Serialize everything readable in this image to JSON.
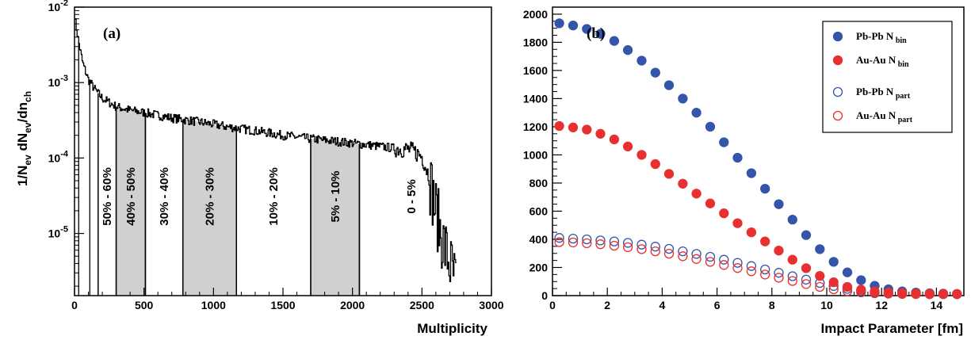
{
  "chart_data": [
    {
      "type": "histogram",
      "panel_label": "(a)",
      "xlabel": "Multiplicity",
      "ylabel": "1/N_ev dN_ev/dn_ch",
      "x_scale": "linear",
      "y_scale": "log",
      "xlim": [
        0,
        3000
      ],
      "ylim": [
        1.5e-06,
        0.01
      ],
      "x_ticks": [
        "0",
        "500",
        "1000",
        "1500",
        "2000",
        "2500",
        "3000"
      ],
      "y_ticks": [
        "10^-2",
        "10^-3",
        "10^-4",
        "10^-5"
      ],
      "distribution_envelope": {
        "x": [
          0,
          10,
          30,
          60,
          100,
          150,
          200,
          300,
          400,
          500,
          700,
          900,
          1100,
          1300,
          1500,
          1700,
          1900,
          2100,
          2300,
          2400,
          2450,
          2500,
          2550,
          2600,
          2650,
          2700,
          2750
        ],
        "y": [
          0.009,
          0.006,
          0.0035,
          0.0018,
          0.0011,
          0.0008,
          0.00062,
          0.00048,
          0.00043,
          0.0004,
          0.00034,
          0.0003,
          0.00026,
          0.00023,
          0.0002,
          0.00018,
          0.000165,
          0.00015,
          0.000135,
          0.00013,
          0.00012,
          0.000105,
          6e-05,
          2e-05,
          8e-06,
          4e-06,
          2e-06
        ]
      },
      "centrality_bands": [
        {
          "label": "50% - 60%",
          "x_min": 170,
          "x_max": 300,
          "shaded": false
        },
        {
          "label": "40% - 50%",
          "x_min": 300,
          "x_max": 510,
          "shaded": true
        },
        {
          "label": "30% - 40%",
          "x_min": 510,
          "x_max": 780,
          "shaded": false
        },
        {
          "label": "20% - 30%",
          "x_min": 780,
          "x_max": 1165,
          "shaded": true
        },
        {
          "label": "10% - 20%",
          "x_min": 1165,
          "x_max": 1700,
          "shaded": false
        },
        {
          "label": "5% - 10%",
          "x_min": 1700,
          "x_max": 2050,
          "shaded": true
        },
        {
          "label": "0 - 5%",
          "x_min": 2050,
          "x_max": 2800,
          "shaded": false
        }
      ]
    },
    {
      "type": "scatter",
      "panel_label": "(b)",
      "xlabel": "Impact Parameter [fm]",
      "xlim": [
        0,
        15
      ],
      "ylim": [
        0,
        2050
      ],
      "x_ticks": [
        "0",
        "2",
        "4",
        "6",
        "8",
        "10",
        "12",
        "14"
      ],
      "y_ticks": [
        "0",
        "200",
        "400",
        "600",
        "800",
        "1000",
        "1200",
        "1400",
        "1600",
        "1800",
        "2000"
      ],
      "legend_position": "top-right",
      "x": [
        0.25,
        0.75,
        1.25,
        1.75,
        2.25,
        2.75,
        3.25,
        3.75,
        4.25,
        4.75,
        5.25,
        5.75,
        6.25,
        6.75,
        7.25,
        7.75,
        8.25,
        8.75,
        9.25,
        9.75,
        10.25,
        10.75,
        11.25,
        11.75,
        12.25,
        12.75,
        13.25,
        13.75,
        14.25,
        14.75
      ],
      "series": [
        {
          "name": "Pb-Pb N",
          "name_sub": "bin",
          "color": "#3355aa",
          "filled": true,
          "values": [
            1935,
            1920,
            1895,
            1860,
            1810,
            1745,
            1670,
            1585,
            1495,
            1400,
            1300,
            1200,
            1090,
            980,
            870,
            760,
            650,
            540,
            430,
            330,
            240,
            165,
            110,
            70,
            45,
            30,
            22,
            17,
            14,
            12
          ]
        },
        {
          "name": "Au-Au N",
          "name_sub": "bin",
          "color": "#e83030",
          "filled": true,
          "values": [
            1205,
            1195,
            1180,
            1150,
            1110,
            1060,
            1000,
            935,
            865,
            795,
            725,
            655,
            585,
            515,
            450,
            385,
            320,
            255,
            195,
            140,
            95,
            62,
            42,
            30,
            23,
            18,
            15,
            13,
            12,
            11
          ]
        },
        {
          "name": "Pb-Pb N",
          "name_sub": "part",
          "color": "#3355aa",
          "filled": false,
          "values": [
            410,
            405,
            400,
            392,
            385,
            375,
            362,
            348,
            332,
            315,
            296,
            276,
            255,
            233,
            210,
            186,
            162,
            138,
            114,
            90,
            68,
            48,
            33,
            22,
            16,
            13,
            12,
            11,
            10,
            10
          ]
        },
        {
          "name": "Au-Au N",
          "name_sub": "part",
          "color": "#e83030",
          "filled": false,
          "values": [
            380,
            378,
            372,
            365,
            355,
            344,
            330,
            315,
            298,
            280,
            260,
            240,
            218,
            196,
            173,
            150,
            127,
            104,
            82,
            62,
            45,
            32,
            23,
            17,
            14,
            12,
            11,
            10,
            10,
            10
          ]
        }
      ]
    }
  ]
}
